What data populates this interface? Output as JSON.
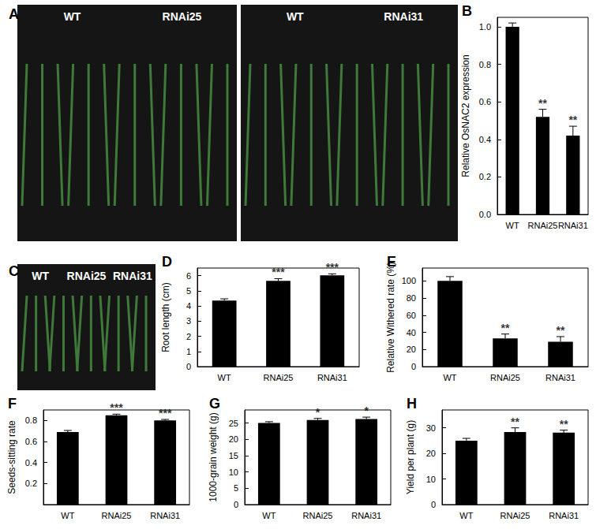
{
  "photos": [
    {
      "title": "A",
      "labels": [
        "WT",
        "RNAi25",
        "WT",
        "RNAi31"
      ]
    },
    {
      "title": "C",
      "labels": [
        "WT",
        "RNAi25",
        "RNAi31"
      ]
    }
  ],
  "chart_data": [
    {
      "type": "bar",
      "title": "B",
      "y_label": "Relative OsNAC2 expression",
      "categories": [
        "WT",
        "RNAi25",
        "RNAi31"
      ],
      "values": [
        1.0,
        0.52,
        0.42
      ],
      "errors": [
        0.02,
        0.04,
        0.05
      ],
      "annotations": [
        null,
        "**",
        "**"
      ],
      "color": "#000000",
      "ylim": [
        0,
        1.05
      ],
      "yticks": [
        {
          "value": 0,
          "label": "0.0"
        },
        0.2,
        0.4,
        0.6,
        0.8,
        {
          "value": 1,
          "label": "1.0"
        }
      ],
      "grid": false
    },
    {
      "type": "bar",
      "title": "D",
      "y_label": "Root length (cm)",
      "categories": [
        "WT",
        "RNAi25",
        "RNAi31"
      ],
      "values": [
        4.35,
        5.65,
        6.02
      ],
      "errors": [
        0.12,
        0.15,
        0.1
      ],
      "annotations": [
        null,
        "***",
        "***"
      ],
      "color": "#000000",
      "ylim": [
        0,
        6.5
      ],
      "yticks": [
        0,
        1,
        2,
        3,
        4,
        5,
        6
      ],
      "grid": false
    },
    {
      "type": "bar",
      "title": "E",
      "y_label": "Relative Withered rate (%)",
      "categories": [
        "WT",
        "RNAi25",
        "RNAi31"
      ],
      "values": [
        100,
        33,
        29
      ],
      "errors": [
        5,
        5,
        6
      ],
      "annotations": [
        null,
        "**",
        "**"
      ],
      "color": "#000000",
      "ylim": [
        0,
        115
      ],
      "yticks": [
        0,
        20,
        40,
        60,
        80,
        100
      ],
      "grid": false
    },
    {
      "type": "bar",
      "title": "F",
      "y_label": "Seeds-sitting rate",
      "categories": [
        "WT",
        "RNAi25",
        "RNAi31"
      ],
      "values": [
        0.69,
        0.85,
        0.8
      ],
      "errors": [
        0.015,
        0.01,
        0.01
      ],
      "annotations": [
        null,
        "***",
        "***"
      ],
      "color": "#000000",
      "ylim": [
        0,
        0.9
      ],
      "yticks": [
        0.2,
        0.4,
        0.6,
        0.8
      ],
      "grid": false
    },
    {
      "type": "bar",
      "title": "G",
      "y_label": "1000-grain weight (g)",
      "categories": [
        "WT",
        "RNAi25",
        "RNAi31"
      ],
      "values": [
        25.0,
        25.9,
        26.2
      ],
      "errors": [
        0.4,
        0.5,
        0.6
      ],
      "annotations": [
        null,
        "*",
        "*"
      ],
      "color": "#000000",
      "ylim": [
        0,
        29
      ],
      "yticks": [
        0,
        5,
        10,
        15,
        20,
        25
      ],
      "grid": false
    },
    {
      "type": "bar",
      "title": "H",
      "y_label": "Yield per plant (g)",
      "categories": [
        "WT",
        "RNAi25",
        "RNAi31"
      ],
      "values": [
        25.0,
        28.4,
        28.1
      ],
      "errors": [
        0.9,
        1.6,
        1.0
      ],
      "annotations": [
        null,
        "**",
        "**"
      ],
      "color": "#000000",
      "ylim": [
        0,
        37
      ],
      "yticks": [
        0,
        10,
        20,
        30
      ],
      "grid": false
    }
  ]
}
